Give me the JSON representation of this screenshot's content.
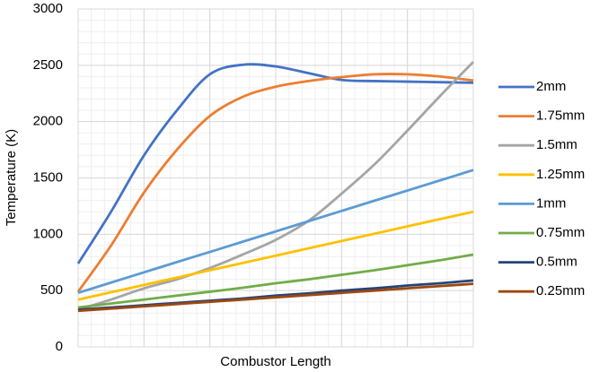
{
  "chart_data": {
    "type": "line",
    "x_label": "Combustor Length",
    "y_label": "Temperature (K)",
    "categories": [
      null,
      null,
      null,
      null,
      null,
      null,
      null,
      null,
      null,
      null,
      null,
      null,
      null
    ],
    "series": [
      {
        "name": "2mm",
        "color": "#4472c4",
        "values": [
          740,
          1200,
          1700,
          2100,
          2420,
          2505,
          2490,
          2430,
          2370,
          2360,
          2355,
          2350,
          2345
        ]
      },
      {
        "name": "1.75mm",
        "color": "#ed7d31",
        "values": [
          490,
          900,
          1370,
          1750,
          2050,
          2220,
          2310,
          2360,
          2395,
          2420,
          2420,
          2400,
          2365
        ]
      },
      {
        "name": "1.5mm",
        "color": "#a5a5a5",
        "values": [
          330,
          420,
          520,
          600,
          700,
          820,
          950,
          1120,
          1360,
          1620,
          1920,
          2230,
          2530
        ]
      },
      {
        "name": "1.25mm",
        "color": "#ffc000",
        "values": [
          420,
          485,
          550,
          615,
          680,
          745,
          810,
          875,
          940,
          1005,
          1070,
          1135,
          1200
        ]
      },
      {
        "name": "1mm",
        "color": "#5b9bd5",
        "values": [
          480,
          571,
          662,
          753,
          843,
          934,
          1025,
          1116,
          1207,
          1298,
          1388,
          1479,
          1570
        ]
      },
      {
        "name": "0.75mm",
        "color": "#70ad47",
        "values": [
          350,
          385,
          420,
          455,
          490,
          525,
          565,
          600,
          640,
          680,
          725,
          770,
          820
        ]
      },
      {
        "name": "0.5mm",
        "color": "#264478",
        "values": [
          330,
          350,
          370,
          390,
          410,
          430,
          455,
          475,
          500,
          520,
          545,
          565,
          590
        ]
      },
      {
        "name": "0.25mm",
        "color": "#9e480e",
        "values": [
          320,
          340,
          360,
          380,
          400,
          420,
          440,
          460,
          480,
          500,
          520,
          540,
          560
        ]
      }
    ],
    "ylim": [
      0,
      3000
    ],
    "yticks": [
      0,
      500,
      1000,
      1500,
      2000,
      2500,
      3000
    ],
    "grid": true,
    "legend": "right"
  }
}
